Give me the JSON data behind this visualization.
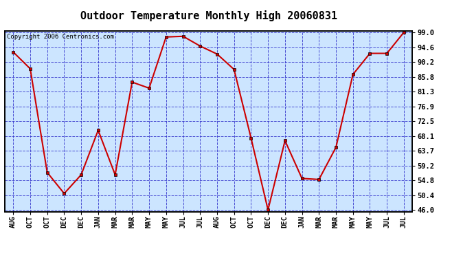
{
  "title": "Outdoor Temperature Monthly High 20060831",
  "copyright": "Copyright 2006 Centronics.com",
  "x_labels": [
    "AUG",
    "OCT",
    "OCT",
    "DEC",
    "DEC",
    "JAN",
    "MAR",
    "MAR",
    "MAY",
    "MAY",
    "JUL",
    "JUL",
    "AUG",
    "OCT",
    "OCT",
    "DEC",
    "DEC",
    "JAN",
    "MAR",
    "MAR",
    "MAY",
    "MAY",
    "JUL",
    "JUL"
  ],
  "y_values": [
    93.2,
    88.2,
    57.2,
    50.9,
    56.5,
    69.8,
    56.5,
    84.2,
    82.4,
    97.7,
    97.9,
    95.0,
    92.6,
    88.0,
    67.5,
    46.0,
    66.7,
    55.4,
    55.1,
    64.7,
    86.5,
    92.8,
    92.8,
    99.1
  ],
  "yticks": [
    46.0,
    50.4,
    54.8,
    59.2,
    63.7,
    68.1,
    72.5,
    76.9,
    81.3,
    85.8,
    90.2,
    94.6,
    99.0
  ],
  "ymin": 45.5,
  "ymax": 99.5,
  "line_color": "#cc0000",
  "marker_color": "#cc0000",
  "bg_color": "#cce5ff",
  "grid_color": "#3333cc",
  "border_color": "#000000",
  "title_fontsize": 11,
  "copyright_fontsize": 6.5,
  "tick_fontsize": 7.5,
  "axis_label_fontsize": 7
}
